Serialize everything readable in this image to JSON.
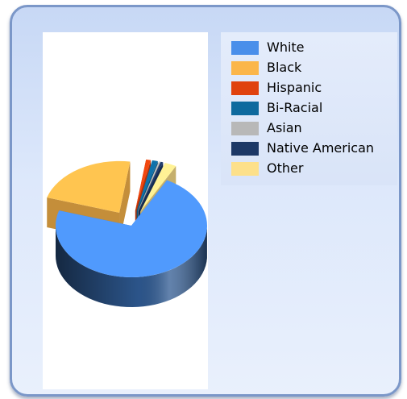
{
  "chart_data": {
    "type": "pie",
    "style": "3d-exploded",
    "legend_position": "top-right",
    "slices": [
      {
        "label": "White",
        "value": 72.0,
        "color": "#4a8fea"
      },
      {
        "label": "Black",
        "value": 22.5,
        "color": "#fbb64a"
      },
      {
        "label": "Hispanic",
        "value": 1.0,
        "color": "#e0420e"
      },
      {
        "label": "Bi-Racial",
        "value": 1.2,
        "color": "#0e6a9e"
      },
      {
        "label": "Asian",
        "value": 0.3,
        "color": "#b8b8b8"
      },
      {
        "label": "Native American",
        "value": 0.5,
        "color": "#1c3866"
      },
      {
        "label": "Other",
        "value": 2.5,
        "color": "#fde08a"
      }
    ]
  }
}
